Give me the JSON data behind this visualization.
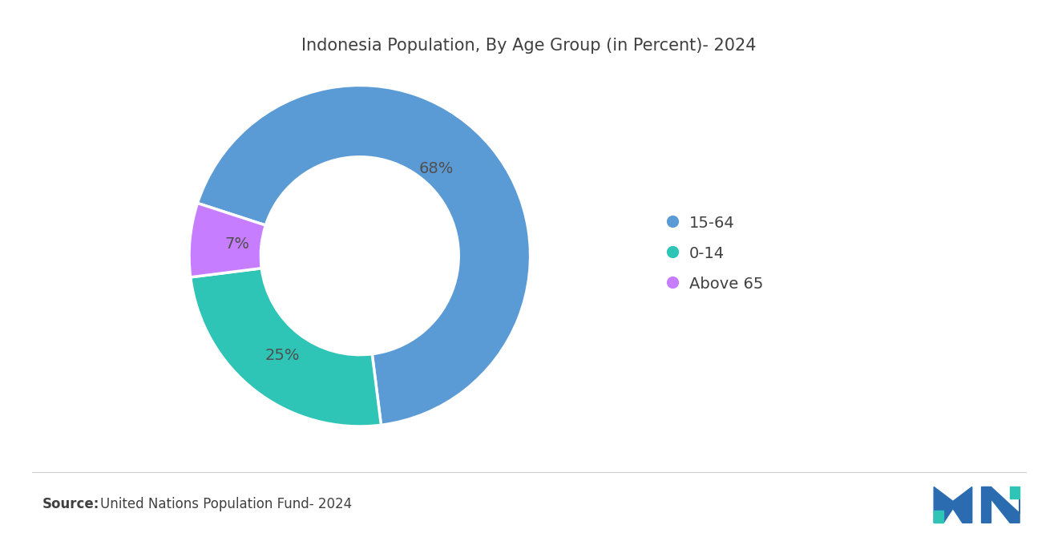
{
  "title": "Indonesia Population, By Age Group (in Percent)- 2024",
  "slices": [
    68,
    25,
    7
  ],
  "labels": [
    "15-64",
    "0-14",
    "Above 65"
  ],
  "colors": [
    "#5B9BD5",
    "#2EC4B6",
    "#C77DFF"
  ],
  "pct_labels": [
    "68%",
    "25%",
    "7%"
  ],
  "source_bold": "Source:",
  "source_text": "United Nations Population Fund- 2024",
  "background_color": "#FFFFFF",
  "title_fontsize": 15,
  "title_color": "#404040",
  "legend_fontsize": 14,
  "source_fontsize": 12,
  "pct_fontsize": 14,
  "pct_color": "#505050",
  "donut_startangle": 162,
  "legend_marker_color": [
    "#5B9BD5",
    "#2EC4B6",
    "#C77DFF"
  ]
}
